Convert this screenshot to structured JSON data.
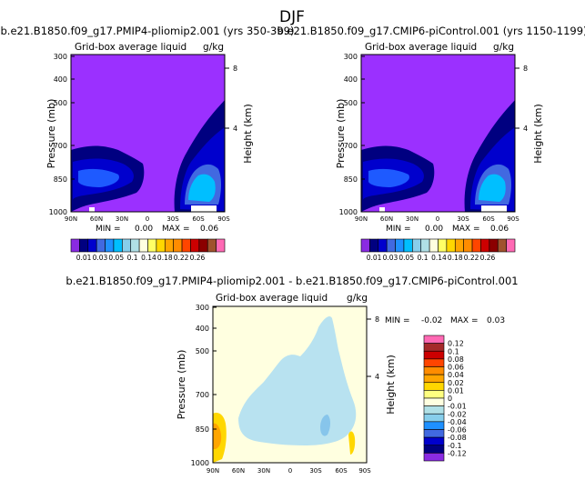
{
  "figure": {
    "season": "DJF",
    "variable_label": "Grid-box average liquid",
    "units": "g/kg",
    "ylabel": "Pressure (mb)",
    "right_label": "Height (km)",
    "pressure_ticks": [
      "300",
      "400",
      "500",
      "700",
      "850",
      "1000"
    ],
    "height_ticks": [
      "8",
      "4"
    ],
    "lat_ticks": [
      "90N",
      "60N",
      "30N",
      "0",
      "30S",
      "60S",
      "90S"
    ]
  },
  "chart_data": [
    {
      "type": "heatmap",
      "title": "b.e21.B1850.f09_g17.PMIP4-pliomip2.001 (yrs 350-399)",
      "subtitle": "Grid-box average liquid",
      "units": "g/kg",
      "xlabel": "",
      "ylabel": "Pressure (mb)",
      "xlim": [
        "90N",
        "90S"
      ],
      "ylim": [
        1000,
        300
      ],
      "stats": {
        "min_label": "MIN =",
        "min": "0.00",
        "max_label": "MAX =",
        "max": "0.06"
      },
      "colorbar_levels": [
        "0.01",
        "0.03",
        "0.05",
        "0.1",
        "0.14",
        "0.18",
        "0.22",
        "0.26"
      ],
      "colorbar_colors": [
        "#8a2be2",
        "#000080",
        "#0000cd",
        "#4169e1",
        "#1e90ff",
        "#00bfff",
        "#87ceeb",
        "#b0e0e6",
        "#ffffe0",
        "#ffff66",
        "#ffd700",
        "#ffa500",
        "#ff8c00",
        "#ff4500",
        "#cc0000",
        "#8b0000",
        "#a0522d",
        "#ff69b4"
      ]
    },
    {
      "type": "heatmap",
      "title": "b.e21.B1850.f09_g17.CMIP6-piControl.001 (yrs 1150-1199)",
      "subtitle": "Grid-box average liquid",
      "units": "g/kg",
      "xlabel": "",
      "ylabel": "Pressure (mb)",
      "xlim": [
        "90N",
        "90S"
      ],
      "ylim": [
        1000,
        300
      ],
      "stats": {
        "min_label": "MIN =",
        "min": "0.00",
        "max_label": "MAX =",
        "max": "0.06"
      },
      "colorbar_levels": [
        "0.01",
        "0.03",
        "0.05",
        "0.1",
        "0.14",
        "0.18",
        "0.22",
        "0.26"
      ]
    },
    {
      "type": "heatmap",
      "title": "b.e21.B1850.f09_g17.PMIP4-pliomip2.001 - b.e21.B1850.f09_g17.CMIP6-piControl.001",
      "subtitle": "Grid-box average liquid",
      "units": "g/kg",
      "xlabel": "",
      "ylabel": "Pressure (mb)",
      "xlim": [
        "90N",
        "90S"
      ],
      "ylim": [
        1000,
        300
      ],
      "stats": {
        "min_label": "MIN =",
        "min": "-0.02",
        "max_label": "MAX =",
        "max": "0.03"
      },
      "colorbar_levels": [
        "0.12",
        "0.1",
        "0.08",
        "0.06",
        "0.04",
        "0.02",
        "0.01",
        "0",
        "-0.01",
        "-0.02",
        "-0.04",
        "-0.06",
        "-0.08",
        "-0.1",
        "-0.12"
      ],
      "colorbar_colors": [
        "#ff69b4",
        "#a52a2a",
        "#cc0000",
        "#ff4500",
        "#ff8c00",
        "#ffa500",
        "#ffd700",
        "#ffff80",
        "#ffffe0",
        "#b0e0e6",
        "#87ceeb",
        "#1e90ff",
        "#4169e1",
        "#0000cd",
        "#000080",
        "#8a2be2"
      ]
    }
  ]
}
